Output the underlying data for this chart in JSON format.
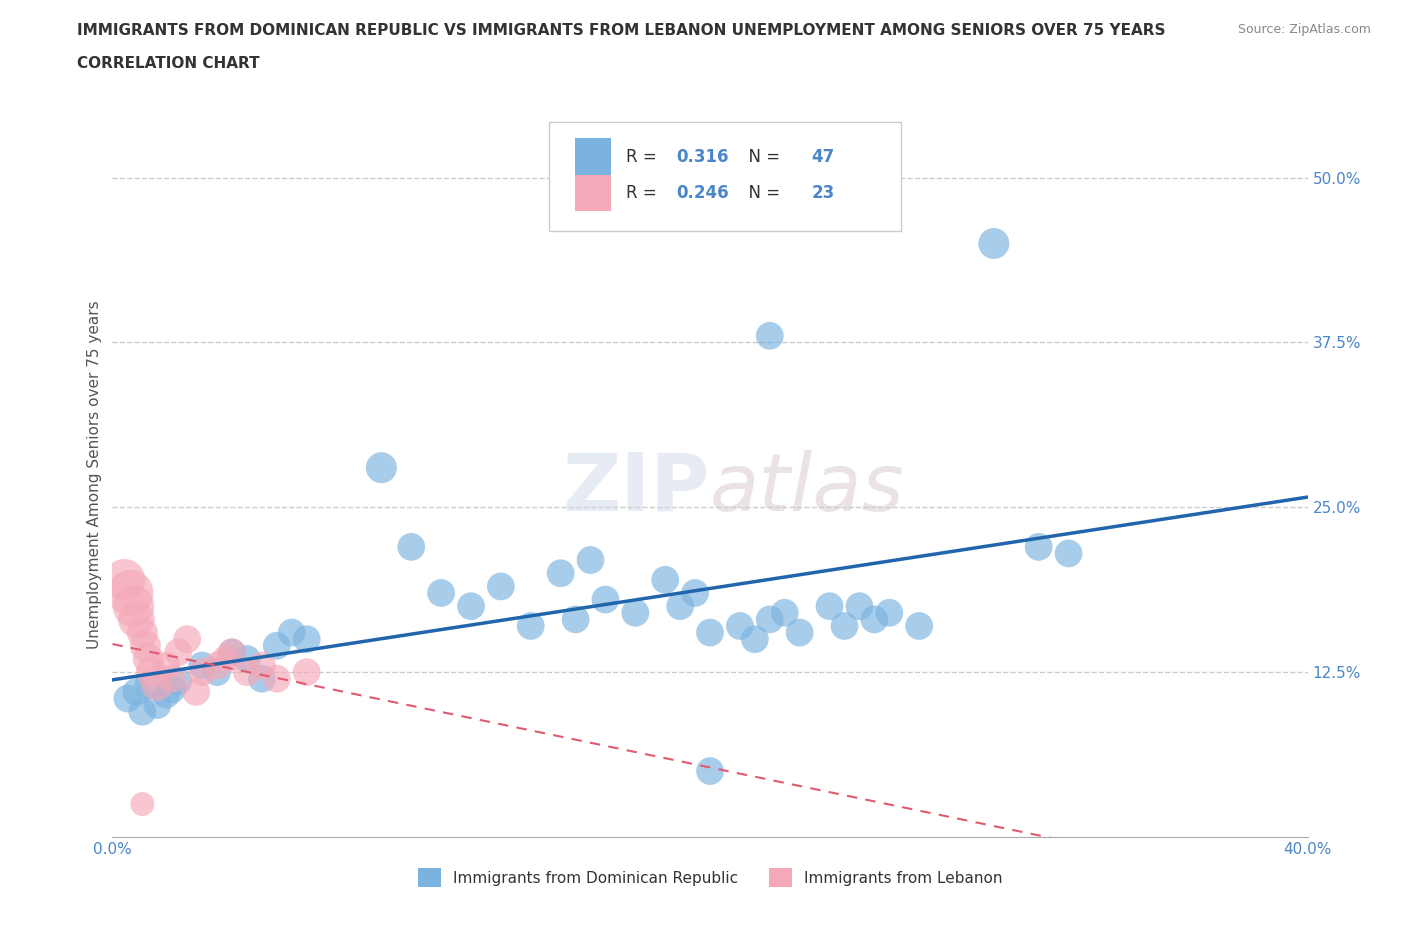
{
  "title_line1": "IMMIGRANTS FROM DOMINICAN REPUBLIC VS IMMIGRANTS FROM LEBANON UNEMPLOYMENT AMONG SENIORS OVER 75 YEARS",
  "title_line2": "CORRELATION CHART",
  "source": "Source: ZipAtlas.com",
  "ylabel": "Unemployment Among Seniors over 75 years",
  "xlim": [
    0.0,
    0.4
  ],
  "ylim": [
    0.0,
    0.55
  ],
  "ytick_positions": [
    0.125,
    0.25,
    0.375,
    0.5
  ],
  "ytick_labels": [
    "12.5%",
    "25.0%",
    "37.5%",
    "50.0%"
  ],
  "R_blue": 0.316,
  "N_blue": 47,
  "R_pink": 0.246,
  "N_pink": 23,
  "color_blue": "#7ab3e0",
  "color_pink": "#f4a8b8",
  "line_color_blue": "#2166ac",
  "line_color_pink": "#e05a70",
  "legend_label_blue": "Immigrants from Dominican Republic",
  "legend_label_pink": "Immigrants from Lebanon",
  "blue_x": [
    0.005,
    0.008,
    0.01,
    0.012,
    0.015,
    0.018,
    0.02,
    0.022,
    0.03,
    0.035,
    0.04,
    0.045,
    0.05,
    0.055,
    0.06,
    0.065,
    0.09,
    0.1,
    0.11,
    0.12,
    0.13,
    0.14,
    0.15,
    0.16,
    0.155,
    0.165,
    0.175,
    0.185,
    0.19,
    0.195,
    0.2,
    0.21,
    0.215,
    0.22,
    0.225,
    0.23,
    0.24,
    0.245,
    0.25,
    0.255,
    0.26,
    0.27,
    0.22,
    0.295,
    0.31,
    0.32,
    0.2
  ],
  "blue_y": [
    0.105,
    0.11,
    0.095,
    0.115,
    0.1,
    0.108,
    0.112,
    0.118,
    0.13,
    0.125,
    0.14,
    0.135,
    0.12,
    0.145,
    0.155,
    0.15,
    0.28,
    0.22,
    0.185,
    0.175,
    0.19,
    0.16,
    0.2,
    0.21,
    0.165,
    0.18,
    0.17,
    0.195,
    0.175,
    0.185,
    0.155,
    0.16,
    0.15,
    0.165,
    0.17,
    0.155,
    0.175,
    0.16,
    0.175,
    0.165,
    0.17,
    0.16,
    0.38,
    0.45,
    0.22,
    0.215,
    0.05
  ],
  "blue_sizes": [
    400,
    400,
    400,
    400,
    400,
    400,
    400,
    400,
    400,
    400,
    400,
    400,
    400,
    400,
    400,
    400,
    500,
    400,
    400,
    400,
    400,
    400,
    400,
    400,
    400,
    400,
    400,
    400,
    400,
    400,
    400,
    400,
    400,
    400,
    400,
    400,
    400,
    400,
    400,
    400,
    400,
    400,
    400,
    500,
    400,
    400,
    400
  ],
  "pink_x": [
    0.004,
    0.006,
    0.007,
    0.008,
    0.01,
    0.011,
    0.012,
    0.013,
    0.015,
    0.018,
    0.02,
    0.022,
    0.025,
    0.028,
    0.03,
    0.035,
    0.038,
    0.04,
    0.045,
    0.05,
    0.055,
    0.065,
    0.01
  ],
  "pink_y": [
    0.195,
    0.185,
    0.175,
    0.165,
    0.155,
    0.145,
    0.135,
    0.125,
    0.115,
    0.13,
    0.12,
    0.14,
    0.15,
    0.11,
    0.125,
    0.13,
    0.135,
    0.14,
    0.125,
    0.13,
    0.12,
    0.125,
    0.025
  ],
  "pink_sizes": [
    900,
    1100,
    900,
    700,
    500,
    500,
    500,
    500,
    500,
    400,
    400,
    400,
    400,
    400,
    400,
    400,
    400,
    400,
    400,
    400,
    400,
    400,
    300
  ]
}
